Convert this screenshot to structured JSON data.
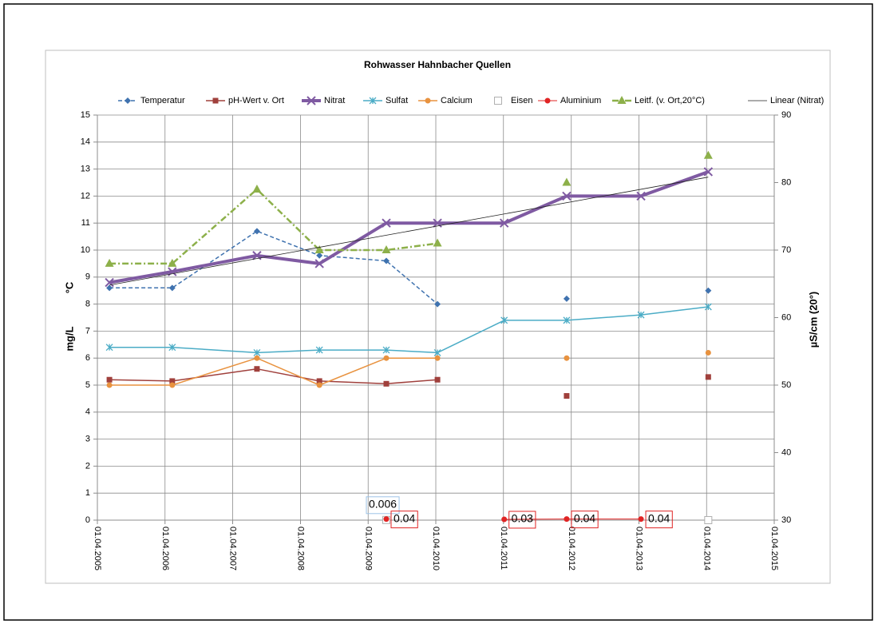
{
  "chart_data": {
    "type": "line",
    "title": "Rohwasser Hahnbacher Quellen",
    "ylabel": "mg/L",
    "ylabel2": "°C",
    "y2label": "µS/cm  (20°)",
    "x": [
      "2005-06-05",
      "2006-05-10",
      "2007-08-10",
      "2008-07-12",
      "2009-07-08",
      "2010-04-10",
      "2011-04-05",
      "2012-03-07",
      "2013-04-12",
      "2014-04-10"
    ],
    "xlim": [
      "2005-04-01",
      "2015-04-01"
    ],
    "xticks": [
      {
        "value": "2005-04-01",
        "label": "01.04.2005"
      },
      {
        "value": "2006-04-01",
        "label": "01.04.2006"
      },
      {
        "value": "2007-04-01",
        "label": "01.04.2007"
      },
      {
        "value": "2008-04-01",
        "label": "01.04.2008"
      },
      {
        "value": "2009-04-01",
        "label": "01.04.2009"
      },
      {
        "value": "2010-04-01",
        "label": "01.04.2010"
      },
      {
        "value": "2011-04-01",
        "label": "01.04.2011"
      },
      {
        "value": "2012-04-01",
        "label": "01.04.2012"
      },
      {
        "value": "2013-04-01",
        "label": "01.04.2013"
      },
      {
        "value": "2014-04-01",
        "label": "01.04.2014"
      },
      {
        "value": "2015-04-01",
        "label": "01.04.2015"
      }
    ],
    "ylim": [
      0,
      15
    ],
    "yticks": [
      0,
      1,
      2,
      3,
      4,
      5,
      6,
      7,
      8,
      9,
      10,
      11,
      12,
      13,
      14,
      15
    ],
    "y2lim": [
      30,
      90
    ],
    "y2ticks": [
      30,
      40,
      50,
      60,
      70,
      80,
      90
    ],
    "grid": true,
    "legend": "top",
    "series": [
      {
        "name": "Temperatur",
        "color": "#3f72af",
        "marker": "diamond",
        "dash": "dashed",
        "width": 1.5,
        "values": [
          8.6,
          8.6,
          10.7,
          9.8,
          9.6,
          8.0,
          null,
          8.2,
          null,
          8.5
        ]
      },
      {
        "name": "pH-Wert v. Ort",
        "color": "#a0403c",
        "marker": "square",
        "dash": "solid",
        "width": 1.5,
        "values": [
          5.2,
          5.15,
          5.6,
          5.15,
          5.05,
          5.2,
          null,
          4.6,
          null,
          5.3
        ]
      },
      {
        "name": "Nitrat",
        "color": "#7f5aa2",
        "marker": "x",
        "dash": "solid",
        "width": 4,
        "values": [
          8.8,
          9.2,
          9.8,
          9.5,
          11.0,
          11.0,
          11.0,
          12.0,
          12.0,
          12.9
        ]
      },
      {
        "name": "Sulfat",
        "color": "#4bacc6",
        "marker": "asterisk",
        "dash": "solid",
        "width": 1.5,
        "values": [
          6.4,
          6.4,
          6.2,
          6.3,
          6.3,
          6.2,
          7.4,
          7.4,
          7.6,
          7.9
        ]
      },
      {
        "name": "Calcium",
        "color": "#e8923f",
        "marker": "circle",
        "dash": "solid",
        "width": 1.5,
        "values": [
          5.0,
          5.0,
          6.0,
          5.0,
          6.0,
          6.0,
          null,
          6.0,
          null,
          6.2
        ]
      },
      {
        "name": "Eisen",
        "color": "#b0b0b0",
        "marker": "square-open",
        "dash": "none",
        "width": 1,
        "values": [
          null,
          null,
          null,
          null,
          0.006,
          null,
          null,
          null,
          null,
          0
        ],
        "value_labels": [
          null,
          null,
          null,
          null,
          "0.006",
          null,
          null,
          null,
          null,
          null
        ]
      },
      {
        "name": "Aluminium",
        "color": "#e02424",
        "marker": "circle",
        "dash": "solid",
        "width": 1,
        "values": [
          null,
          null,
          null,
          null,
          0.04,
          null,
          0.03,
          0.04,
          0.04,
          null
        ],
        "value_labels": [
          null,
          null,
          null,
          null,
          "0.04",
          null,
          "0.03",
          "0.04",
          "0.04",
          null
        ]
      },
      {
        "name": "Leitf. (v. Ort,20°C)",
        "color": "#8db04a",
        "marker": "triangle",
        "dash": "dashdot",
        "width": 2.5,
        "axis": "y2",
        "values": [
          68,
          68,
          79,
          70,
          70,
          71,
          null,
          80,
          null,
          84
        ]
      },
      {
        "name": "Linear (Nitrat)",
        "color": "#222222",
        "marker": "none",
        "dash": "solid",
        "width": 0.8,
        "x": [
          "2005-06-05",
          "2014-04-10"
        ],
        "values": [
          8.7,
          12.7
        ]
      }
    ]
  }
}
